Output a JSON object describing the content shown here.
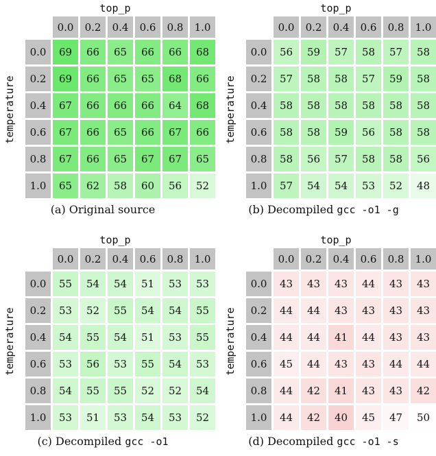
{
  "chart_data": [
    {
      "type": "heatmap",
      "x_title": "top_p",
      "y_title": "temperature",
      "x_labels": [
        "0.0",
        "0.2",
        "0.4",
        "0.6",
        "0.8",
        "1.0"
      ],
      "y_labels": [
        "0.0",
        "0.2",
        "0.4",
        "0.6",
        "0.8",
        "1.0"
      ],
      "color": "#5ee65e",
      "caption_prefix": "(a) Original source",
      "caption_code": "",
      "values": [
        [
          69,
          66,
          65,
          66,
          66,
          68
        ],
        [
          69,
          66,
          65,
          65,
          68,
          66
        ],
        [
          67,
          66,
          66,
          66,
          64,
          68
        ],
        [
          67,
          66,
          65,
          66,
          67,
          66
        ],
        [
          67,
          66,
          65,
          67,
          67,
          65
        ],
        [
          65,
          62,
          58,
          60,
          56,
          52
        ]
      ]
    },
    {
      "type": "heatmap",
      "x_title": "top_p",
      "y_title": "temperature",
      "x_labels": [
        "0.0",
        "0.2",
        "0.4",
        "0.6",
        "0.8",
        "1.0"
      ],
      "y_labels": [
        "0.0",
        "0.2",
        "0.4",
        "0.6",
        "0.8",
        "1.0"
      ],
      "color": "#5ee65e",
      "caption_prefix": "(b) Decompiled ",
      "caption_code": "gcc -o1 -g",
      "values": [
        [
          56,
          59,
          57,
          58,
          57,
          58
        ],
        [
          57,
          58,
          58,
          57,
          59,
          58
        ],
        [
          58,
          58,
          58,
          58,
          58,
          58
        ],
        [
          58,
          58,
          59,
          56,
          58,
          58
        ],
        [
          58,
          56,
          57,
          58,
          58,
          56
        ],
        [
          57,
          54,
          54,
          53,
          52,
          48
        ]
      ]
    },
    {
      "type": "heatmap",
      "x_title": "top_p",
      "y_title": "temperature",
      "x_labels": [
        "0.0",
        "0.2",
        "0.4",
        "0.6",
        "0.8",
        "1.0"
      ],
      "y_labels": [
        "0.0",
        "0.2",
        "0.4",
        "0.6",
        "0.8",
        "1.0"
      ],
      "color": "#5ee65e",
      "caption_prefix": "(c) Decompiled ",
      "caption_code": "gcc -o1",
      "values": [
        [
          55,
          54,
          54,
          51,
          53,
          53
        ],
        [
          53,
          52,
          55,
          54,
          54,
          55
        ],
        [
          54,
          55,
          54,
          51,
          53,
          55
        ],
        [
          53,
          56,
          53,
          55,
          54,
          53
        ],
        [
          54,
          55,
          55,
          52,
          52,
          54
        ],
        [
          53,
          51,
          53,
          54,
          53,
          52
        ]
      ]
    },
    {
      "type": "heatmap",
      "x_title": "top_p",
      "y_title": "temperature",
      "x_labels": [
        "0.0",
        "0.2",
        "0.4",
        "0.6",
        "0.8",
        "1.0"
      ],
      "y_labels": [
        "0.0",
        "0.2",
        "0.4",
        "0.6",
        "0.8",
        "1.0"
      ],
      "color": "#f08c8c",
      "caption_prefix": "(d) Decompiled ",
      "caption_code": "gcc -o1 -s",
      "values": [
        [
          43,
          43,
          43,
          44,
          43,
          43
        ],
        [
          44,
          44,
          43,
          43,
          43,
          43
        ],
        [
          44,
          44,
          41,
          44,
          43,
          43
        ],
        [
          45,
          44,
          43,
          43,
          44,
          44
        ],
        [
          44,
          42,
          41,
          43,
          43,
          42
        ],
        [
          44,
          42,
          40,
          45,
          47,
          50
        ]
      ]
    }
  ]
}
